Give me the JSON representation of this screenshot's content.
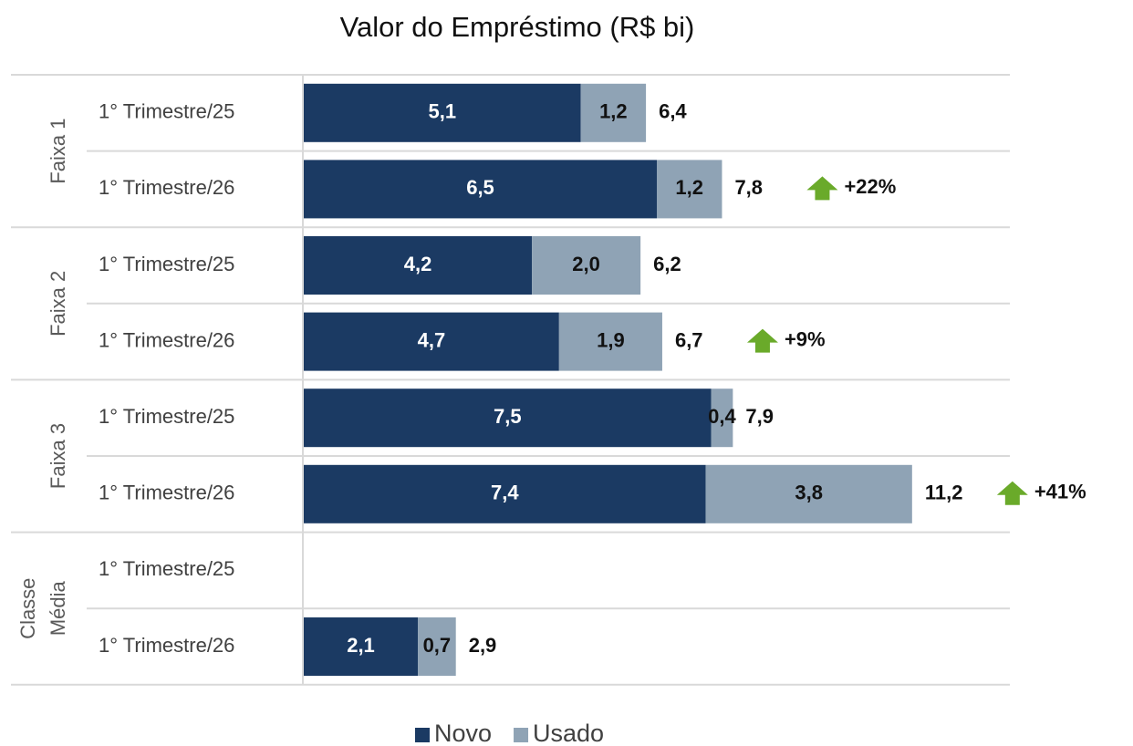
{
  "chart_data": {
    "type": "stacked-barh",
    "title": "Valor do Empréstimo (R$ bi)",
    "groups": [
      [
        "Faixa 1"
      ],
      [
        "Faixa 2"
      ],
      [
        "Faixa 3"
      ],
      [
        "Classe",
        "Média"
      ]
    ],
    "categories": [
      "1° Trimestre/25",
      "1° Trimestre/26",
      "1° Trimestre/25",
      "1° Trimestre/26",
      "1° Trimestre/25",
      "1° Trimestre/26",
      "1° Trimestre/25",
      "1° Trimestre/26"
    ],
    "series": [
      {
        "name": "Novo",
        "color": "#1b3a63",
        "values": [
          5.1,
          6.5,
          4.2,
          4.7,
          7.5,
          7.4,
          null,
          2.1
        ],
        "value_labels": [
          "5,1",
          "6,5",
          "4,2",
          "4,7",
          "7,5",
          "7,4",
          null,
          "2,1"
        ]
      },
      {
        "name": "Usado",
        "color": "#8fa3b5",
        "values": [
          1.2,
          1.2,
          2.0,
          1.9,
          0.4,
          3.8,
          null,
          0.7
        ],
        "value_labels": [
          "1,2",
          "1,2",
          "2,0",
          "1,9",
          "0,4",
          "3,8",
          null,
          "0,7"
        ]
      }
    ],
    "totals": {
      "values": [
        6.4,
        7.8,
        6.2,
        6.7,
        7.9,
        11.2,
        null,
        2.9
      ],
      "value_labels": [
        "6,4",
        "7,8",
        "6,2",
        "6,7",
        "7,9",
        "11,2",
        null,
        "2,9"
      ]
    },
    "changes": [
      null,
      "+22%",
      null,
      "+9%",
      null,
      "+41%",
      null,
      null
    ],
    "change_color": "#6aaa2a",
    "xlim": [
      0,
      13
    ]
  }
}
